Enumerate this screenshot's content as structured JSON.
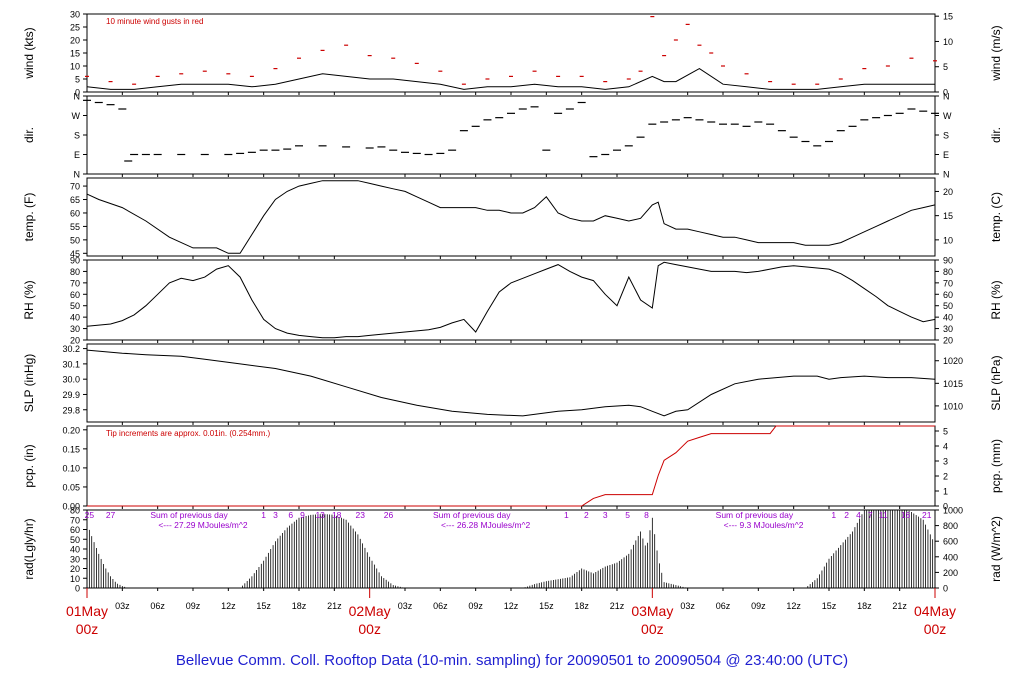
{
  "footer": "Bellevue Comm. Coll. Rooftop Data (10-min. sampling) for 20090501  to  20090504 @ 23:40:00  (UTC)",
  "colors": {
    "axis": "#000000",
    "red": "#cc0000",
    "purple": "#9900cc",
    "blue": "#1f1fd0"
  },
  "time_axis": {
    "tick_labels": [
      "03z",
      "06z",
      "09z",
      "12z",
      "15z",
      "18z",
      "21z",
      "03z",
      "06z",
      "09z",
      "12z",
      "15z",
      "18z",
      "21z",
      "03z",
      "06z",
      "09z",
      "12z",
      "15z",
      "18z",
      "21z"
    ],
    "tick_hours": [
      3,
      6,
      9,
      12,
      15,
      18,
      21,
      27,
      30,
      33,
      36,
      39,
      42,
      45,
      51,
      54,
      57,
      60,
      63,
      66,
      69
    ],
    "day_labels": [
      {
        "hour": 0,
        "line1": "01May",
        "line2": "00z"
      },
      {
        "hour": 24,
        "line1": "02May",
        "line2": "00z"
      },
      {
        "hour": 48,
        "line1": "03May",
        "line2": "00z"
      },
      {
        "hour": 72,
        "line1": "04May",
        "line2": "00z"
      }
    ]
  },
  "chart_data": [
    {
      "id": "wind",
      "type": "line",
      "ylabel_left": "wind (kts)",
      "ylabel_right": "wind (m/s)",
      "ylim": [
        0,
        30
      ],
      "yticks_left": [
        0,
        5,
        10,
        15,
        20,
        25,
        30
      ],
      "yticks_right": [
        0,
        5,
        10,
        15
      ],
      "annotation": "10  minute wind gusts in red",
      "series": [
        {
          "name": "wind speed",
          "hours": [
            0,
            2,
            4,
            6,
            8,
            10,
            12,
            14,
            16,
            18,
            20,
            22,
            24,
            26,
            28,
            30,
            32,
            34,
            36,
            38,
            40,
            42,
            44,
            46,
            48,
            49,
            50,
            52,
            54,
            56,
            58,
            60,
            62,
            64,
            66,
            68,
            70,
            72
          ],
          "values": [
            2,
            1,
            1,
            2,
            3,
            3,
            3,
            2,
            3,
            5,
            7,
            6,
            5,
            5,
            4,
            3,
            1,
            2,
            2,
            3,
            2,
            2,
            1,
            2,
            6,
            4,
            4,
            9,
            3,
            2,
            1,
            1,
            1,
            2,
            3,
            3,
            3,
            3
          ]
        },
        {
          "name": "gusts",
          "hours": [
            0,
            2,
            4,
            6,
            8,
            10,
            12,
            14,
            16,
            18,
            20,
            22,
            24,
            26,
            28,
            30,
            32,
            34,
            36,
            38,
            40,
            42,
            44,
            46,
            47,
            48,
            49,
            50,
            51,
            52,
            53,
            54,
            56,
            58,
            60,
            62,
            64,
            66,
            68,
            70,
            72
          ],
          "values": [
            6,
            4,
            3,
            6,
            7,
            8,
            7,
            6,
            9,
            13,
            16,
            18,
            14,
            13,
            11,
            8,
            3,
            5,
            6,
            8,
            6,
            6,
            4,
            5,
            8,
            29,
            14,
            20,
            26,
            18,
            15,
            10,
            7,
            4,
            3,
            3,
            5,
            9,
            10,
            13,
            12
          ]
        }
      ]
    },
    {
      "id": "dir",
      "type": "scatter",
      "ylabel_left": "dir.",
      "ylabel_right": "dir.",
      "ylim": [
        0,
        360
      ],
      "yticks_labels": [
        "N",
        "E",
        "S",
        "W",
        "N"
      ],
      "yticks_values": [
        0,
        90,
        180,
        270,
        360
      ],
      "series": [
        {
          "name": "wind direction",
          "hours": [
            0,
            1,
            2,
            3,
            3.5,
            4,
            5,
            6,
            8,
            10,
            12,
            13,
            14,
            15,
            16,
            17,
            18,
            20,
            22,
            24,
            25,
            26,
            27,
            28,
            29,
            30,
            31,
            32,
            33,
            34,
            35,
            36,
            37,
            38,
            39,
            40,
            41,
            42,
            43,
            44,
            45,
            46,
            47,
            48,
            49,
            50,
            51,
            52,
            53,
            54,
            55,
            56,
            57,
            58,
            59,
            60,
            61,
            62,
            63,
            64,
            65,
            66,
            67,
            68,
            69,
            70,
            71,
            72
          ],
          "values": [
            340,
            330,
            320,
            300,
            60,
            90,
            90,
            90,
            90,
            90,
            90,
            95,
            100,
            110,
            110,
            115,
            130,
            130,
            125,
            120,
            125,
            110,
            100,
            95,
            90,
            95,
            110,
            200,
            220,
            250,
            260,
            280,
            300,
            310,
            110,
            280,
            300,
            330,
            80,
            90,
            110,
            130,
            170,
            230,
            240,
            250,
            260,
            250,
            240,
            230,
            230,
            220,
            240,
            230,
            200,
            170,
            150,
            130,
            150,
            200,
            220,
            250,
            260,
            270,
            280,
            300,
            290,
            280
          ]
        }
      ]
    },
    {
      "id": "temp",
      "type": "line",
      "ylabel_left": "temp. (F)",
      "ylabel_right": "temp. (C)",
      "ylim": [
        44,
        73
      ],
      "yticks_left": [
        45,
        50,
        55,
        60,
        65,
        70
      ],
      "yticks_right": [
        10,
        15,
        20
      ],
      "series": [
        {
          "name": "temperature",
          "hours": [
            0,
            1,
            3,
            5,
            7,
            9,
            11,
            12,
            13,
            14,
            15,
            16,
            17,
            18,
            19,
            20,
            21,
            22,
            23,
            24,
            25,
            26,
            27,
            28,
            29,
            30,
            31,
            32,
            33,
            34,
            35,
            36,
            37,
            38,
            39,
            40,
            41,
            42,
            43,
            44,
            45,
            46,
            47,
            48,
            48.5,
            49,
            50,
            51,
            52,
            53,
            54,
            55,
            56,
            57,
            58,
            59,
            60,
            61,
            62,
            63,
            64,
            65,
            66,
            67,
            68,
            69,
            70,
            71,
            72
          ],
          "values": [
            67,
            65,
            62,
            57,
            51,
            47,
            47,
            45,
            45,
            52,
            59,
            65,
            68,
            70,
            71,
            72,
            72,
            72,
            72,
            71,
            70,
            69,
            68,
            66,
            64,
            62,
            62,
            62,
            62,
            61,
            61,
            60,
            60,
            62,
            66,
            60,
            58,
            57,
            57,
            59,
            58,
            57,
            58,
            63,
            64,
            56,
            54,
            54,
            53,
            52,
            51,
            51,
            50,
            49,
            49,
            49,
            49,
            48,
            48,
            48,
            49,
            51,
            53,
            55,
            57,
            59,
            61,
            62,
            63
          ]
        }
      ]
    },
    {
      "id": "rh",
      "type": "line",
      "ylabel_left": "RH (%)",
      "ylabel_right": "RH (%)",
      "ylim": [
        20,
        90
      ],
      "yticks_left": [
        20,
        30,
        40,
        50,
        60,
        70,
        80,
        90
      ],
      "yticks_right": [
        20,
        30,
        40,
        50,
        60,
        70,
        80,
        90
      ],
      "series": [
        {
          "name": "relative humidity",
          "hours": [
            0,
            1,
            2,
            3,
            4,
            5,
            6,
            7,
            8,
            9,
            10,
            11,
            12,
            13,
            14,
            15,
            16,
            17,
            18,
            19,
            20,
            21,
            22,
            23,
            24,
            25,
            26,
            27,
            28,
            29,
            30,
            31,
            32,
            33,
            34,
            35,
            36,
            37,
            38,
            39,
            40,
            41,
            42,
            43,
            44,
            45,
            46,
            47,
            48,
            48.5,
            49,
            50,
            51,
            52,
            53,
            54,
            55,
            56,
            57,
            58,
            59,
            60,
            61,
            62,
            63,
            64,
            65,
            66,
            67,
            68,
            69,
            70,
            71,
            72
          ],
          "values": [
            32,
            33,
            34,
            37,
            42,
            50,
            60,
            70,
            74,
            72,
            75,
            82,
            85,
            75,
            55,
            38,
            30,
            26,
            24,
            23,
            22,
            22,
            23,
            23,
            24,
            25,
            26,
            27,
            28,
            29,
            31,
            35,
            38,
            27,
            45,
            62,
            70,
            74,
            78,
            82,
            86,
            80,
            75,
            72,
            60,
            50,
            75,
            55,
            48,
            85,
            88,
            86,
            84,
            82,
            80,
            80,
            80,
            79,
            80,
            82,
            84,
            85,
            84,
            83,
            82,
            78,
            72,
            65,
            58,
            50,
            45,
            40,
            36,
            38
          ]
        }
      ]
    },
    {
      "id": "slp",
      "type": "line",
      "ylabel_left": "SLP (inHg)",
      "ylabel_right": "SLP (hPa)",
      "ylim": [
        29.72,
        30.23
      ],
      "yticks_left": [
        29.8,
        29.9,
        30.0,
        30.1,
        30.2
      ],
      "yticks_right": [
        1010,
        1015,
        1020
      ],
      "series": [
        {
          "name": "sea level pressure",
          "hours": [
            0,
            3,
            5,
            8,
            10,
            13,
            16,
            19,
            22,
            25,
            28,
            31,
            34,
            37,
            40,
            42,
            44,
            46,
            47,
            48,
            49,
            50,
            51,
            53,
            55,
            57,
            60,
            62,
            63,
            64,
            66,
            68,
            70,
            72
          ],
          "values": [
            30.19,
            30.17,
            30.16,
            30.15,
            30.13,
            30.1,
            30.07,
            30.02,
            29.95,
            29.88,
            29.83,
            29.79,
            29.77,
            29.76,
            29.79,
            29.8,
            29.82,
            29.83,
            29.82,
            29.79,
            29.76,
            29.79,
            29.8,
            29.9,
            29.97,
            30.0,
            30.02,
            30.02,
            30.0,
            30.01,
            30.02,
            30.01,
            30.01,
            30.0
          ]
        }
      ]
    },
    {
      "id": "pcp",
      "type": "line",
      "ylabel_left": "pcp. (in)",
      "ylabel_right": "pcp. (mm)",
      "ylim": [
        0,
        0.21
      ],
      "yticks_left": [
        0.0,
        0.05,
        0.1,
        0.15,
        0.2
      ],
      "yticks_right": [
        0,
        1,
        2,
        3,
        4,
        5
      ],
      "annotation": "Tip increments are approx. 0.01in. (0.254mm.)",
      "series": [
        {
          "name": "precipitation",
          "hours": [
            0,
            42,
            43,
            44,
            47,
            48,
            48.5,
            49,
            50,
            51,
            52,
            53,
            54,
            55,
            58,
            58.5,
            61,
            62,
            72
          ],
          "values": [
            0,
            0,
            0.02,
            0.03,
            0.03,
            0.03,
            0.08,
            0.12,
            0.14,
            0.17,
            0.18,
            0.19,
            0.19,
            0.19,
            0.19,
            0.21,
            0.21,
            0.21,
            0.21
          ]
        }
      ]
    },
    {
      "id": "rad",
      "type": "bar",
      "ylabel_left": "rad(Lgly/hr)",
      "ylabel_right": "rad (W/m^2)",
      "ylim": [
        0,
        80
      ],
      "yticks_left": [
        0,
        10,
        20,
        30,
        40,
        50,
        60,
        70,
        80
      ],
      "yticks_right": [
        0,
        200,
        400,
        600,
        800,
        1000
      ],
      "daily_sums": [
        {
          "hour": 3,
          "line1": "Sum of previous day",
          "line2": "<--- 27.29 MJoules/m^2"
        },
        {
          "hour": 27,
          "line1": "Sum of previous day",
          "line2": "<--- 26.28 MJoules/m^2"
        },
        {
          "hour": 51,
          "line1": "Sum of previous day",
          "line2": "<--- 9.3 MJoules/m^2"
        }
      ],
      "top_numbers": [
        {
          "hour": 0.2,
          "text": "25"
        },
        {
          "hour": 2,
          "text": "27"
        },
        {
          "hour": 15,
          "text": "1"
        },
        {
          "hour": 16,
          "text": "3"
        },
        {
          "hour": 17.3,
          "text": "6"
        },
        {
          "hour": 18.3,
          "text": "9"
        },
        {
          "hour": 19.8,
          "text": "13"
        },
        {
          "hour": 21.2,
          "text": "18"
        },
        {
          "hour": 23.2,
          "text": "23"
        },
        {
          "hour": 25.6,
          "text": "26"
        },
        {
          "hour": 40.7,
          "text": "1"
        },
        {
          "hour": 42.4,
          "text": "2"
        },
        {
          "hour": 44,
          "text": "3"
        },
        {
          "hour": 45.9,
          "text": "5"
        },
        {
          "hour": 47.5,
          "text": "8"
        },
        {
          "hour": 63.4,
          "text": "1"
        },
        {
          "hour": 64.5,
          "text": "2"
        },
        {
          "hour": 65.5,
          "text": "4"
        },
        {
          "hour": 66.5,
          "text": "7"
        },
        {
          "hour": 67.6,
          "text": "11"
        },
        {
          "hour": 69.5,
          "text": "16"
        },
        {
          "hour": 71.3,
          "text": "21"
        }
      ],
      "series": [
        {
          "name": "solar radiation",
          "hours": [
            0,
            0.5,
            1,
            1.5,
            2,
            2.5,
            3,
            3.5,
            13,
            14,
            15,
            16,
            17,
            18,
            19,
            20,
            21,
            22,
            23,
            24,
            25,
            26,
            27,
            37,
            38,
            39,
            40,
            41,
            42,
            43,
            44,
            45,
            46,
            47,
            47.5,
            48,
            48.5,
            49,
            50,
            51,
            61,
            62,
            63,
            64,
            65,
            66,
            67,
            68,
            69,
            70,
            71,
            72
          ],
          "values": [
            66,
            50,
            35,
            22,
            12,
            5,
            2,
            0,
            0,
            12,
            28,
            48,
            62,
            72,
            75,
            76,
            75,
            70,
            55,
            32,
            12,
            3,
            0,
            0,
            4,
            7,
            9,
            11,
            20,
            15,
            22,
            26,
            35,
            58,
            40,
            72,
            30,
            6,
            3,
            0,
            0,
            10,
            30,
            44,
            58,
            80,
            88,
            86,
            84,
            78,
            70,
            45
          ]
        }
      ]
    }
  ]
}
